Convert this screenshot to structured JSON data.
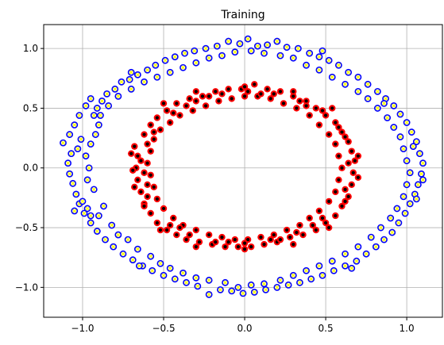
{
  "chart_data": {
    "type": "scatter",
    "title": "Training",
    "xlabel": "",
    "ylabel": "",
    "xlim": [
      -1.24,
      1.22
    ],
    "ylim": [
      -1.25,
      1.2
    ],
    "grid": true,
    "xticks": [
      -1.0,
      -0.5,
      0.0,
      0.5,
      1.0
    ],
    "yticks": [
      -1.0,
      -0.5,
      0.0,
      0.5,
      1.0
    ],
    "xtick_labels": [
      "−1.0",
      "−0.5",
      "0.0",
      "0.5",
      "1.0"
    ],
    "ytick_labels": [
      "−1.0",
      "−0.5",
      "0.0",
      "0.5",
      "1.0"
    ],
    "series": [
      {
        "marker": "circle-with-x",
        "edge_color": "#0000ff",
        "face_color": "#ffff00",
        "points": [
          [
            -1.12,
            0.21
          ],
          [
            -1.08,
            0.28
          ],
          [
            -1.05,
            0.36
          ],
          [
            -1.02,
            0.44
          ],
          [
            -0.98,
            0.52
          ],
          [
            -0.95,
            0.58
          ],
          [
            -0.91,
            0.5
          ],
          [
            -0.88,
            0.56
          ],
          [
            -0.85,
            0.62
          ],
          [
            -0.8,
            0.66
          ],
          [
            -0.76,
            0.72
          ],
          [
            -0.71,
            0.74
          ],
          [
            -0.66,
            0.78
          ],
          [
            -0.6,
            0.82
          ],
          [
            -0.55,
            0.86
          ],
          [
            -0.49,
            0.9
          ],
          [
            -0.43,
            0.93
          ],
          [
            -0.37,
            0.96
          ],
          [
            -0.31,
            0.98
          ],
          [
            -0.24,
            1.0
          ],
          [
            -0.17,
            1.02
          ],
          [
            -0.1,
            1.06
          ],
          [
            -0.03,
            1.04
          ],
          [
            0.02,
            1.08
          ],
          [
            0.08,
            1.02
          ],
          [
            0.14,
            1.03
          ],
          [
            0.2,
            1.06
          ],
          [
            0.26,
            1.01
          ],
          [
            0.33,
            1.0
          ],
          [
            0.4,
            0.96
          ],
          [
            0.46,
            0.93
          ],
          [
            0.52,
            0.9
          ],
          [
            0.58,
            0.86
          ],
          [
            0.64,
            0.8
          ],
          [
            0.7,
            0.76
          ],
          [
            0.76,
            0.7
          ],
          [
            0.82,
            0.64
          ],
          [
            0.87,
            0.58
          ],
          [
            0.92,
            0.52
          ],
          [
            0.96,
            0.45
          ],
          [
            1.0,
            0.38
          ],
          [
            1.03,
            0.3
          ],
          [
            1.06,
            0.22
          ],
          [
            1.08,
            0.12
          ],
          [
            1.1,
            0.04
          ],
          [
            1.09,
            -0.05
          ],
          [
            1.07,
            -0.14
          ],
          [
            1.05,
            -0.22
          ],
          [
            1.02,
            -0.3
          ],
          [
            0.99,
            -0.38
          ],
          [
            0.95,
            -0.46
          ],
          [
            0.91,
            -0.54
          ],
          [
            0.86,
            -0.6
          ],
          [
            0.81,
            -0.66
          ],
          [
            0.75,
            -0.72
          ],
          [
            0.69,
            -0.78
          ],
          [
            0.62,
            -0.82
          ],
          [
            0.55,
            -0.86
          ],
          [
            0.48,
            -0.9
          ],
          [
            0.41,
            -0.93
          ],
          [
            0.34,
            -0.96
          ],
          [
            0.27,
            -0.98
          ],
          [
            0.2,
            -1.0
          ],
          [
            0.13,
            -1.02
          ],
          [
            0.06,
            -1.04
          ],
          [
            -0.01,
            -1.05
          ],
          [
            -0.08,
            -1.03
          ],
          [
            -0.15,
            -1.02
          ],
          [
            -0.22,
            -1.06
          ],
          [
            -0.29,
            -0.99
          ],
          [
            -0.36,
            -0.96
          ],
          [
            -0.43,
            -0.93
          ],
          [
            -0.5,
            -0.9
          ],
          [
            -0.57,
            -0.86
          ],
          [
            -0.63,
            -0.82
          ],
          [
            -0.69,
            -0.77
          ],
          [
            -0.75,
            -0.72
          ],
          [
            -0.81,
            -0.66
          ],
          [
            -0.86,
            -0.6
          ],
          [
            -0.91,
            -0.53
          ],
          [
            -0.95,
            -0.46
          ],
          [
            -0.99,
            -0.38
          ],
          [
            -1.02,
            -0.3
          ],
          [
            -1.04,
            -0.22
          ],
          [
            -1.06,
            -0.13
          ],
          [
            -1.08,
            -0.05
          ],
          [
            -1.09,
            0.04
          ],
          [
            -1.07,
            0.12
          ],
          [
            -0.95,
            0.2
          ],
          [
            -0.98,
            0.1
          ],
          [
            -0.96,
            0.0
          ],
          [
            -0.97,
            -0.1
          ],
          [
            -0.93,
            -0.18
          ],
          [
            -0.92,
            0.28
          ],
          [
            -0.9,
            0.36
          ],
          [
            -0.93,
            0.44
          ],
          [
            -0.87,
            -0.32
          ],
          [
            -0.9,
            -0.4
          ],
          [
            -0.82,
            -0.48
          ],
          [
            -0.78,
            -0.56
          ],
          [
            -0.72,
            -0.6
          ],
          [
            -0.66,
            -0.68
          ],
          [
            -0.58,
            -0.74
          ],
          [
            -0.52,
            -0.8
          ],
          [
            -0.46,
            -0.84
          ],
          [
            -0.38,
            -0.88
          ],
          [
            -0.3,
            -0.92
          ],
          [
            -0.22,
            -0.94
          ],
          [
            -0.12,
            -0.96
          ],
          [
            -0.04,
            -1.0
          ],
          [
            0.04,
            -0.98
          ],
          [
            0.12,
            -0.97
          ],
          [
            0.22,
            -0.94
          ],
          [
            0.3,
            -0.9
          ],
          [
            0.38,
            -0.86
          ],
          [
            0.46,
            -0.82
          ],
          [
            0.54,
            -0.78
          ],
          [
            0.62,
            -0.72
          ],
          [
            0.7,
            -0.66
          ],
          [
            0.78,
            -0.58
          ],
          [
            0.84,
            -0.5
          ],
          [
            0.9,
            -0.42
          ],
          [
            0.94,
            -0.34
          ],
          [
            0.98,
            -0.24
          ],
          [
            1.0,
            -0.14
          ],
          [
            1.02,
            -0.04
          ],
          [
            1.0,
            0.06
          ],
          [
            0.98,
            0.16
          ],
          [
            0.96,
            0.26
          ],
          [
            0.92,
            0.34
          ],
          [
            0.88,
            0.42
          ],
          [
            0.82,
            0.5
          ],
          [
            0.76,
            0.58
          ],
          [
            0.7,
            0.64
          ],
          [
            0.62,
            0.7
          ],
          [
            0.54,
            0.76
          ],
          [
            0.46,
            0.82
          ],
          [
            0.38,
            0.86
          ],
          [
            0.3,
            0.92
          ],
          [
            0.22,
            0.94
          ],
          [
            0.12,
            0.96
          ],
          [
            0.04,
            0.98
          ],
          [
            -0.06,
            0.97
          ],
          [
            -0.14,
            0.94
          ],
          [
            -0.22,
            0.92
          ],
          [
            -0.3,
            0.88
          ],
          [
            -0.38,
            0.84
          ],
          [
            -0.46,
            0.8
          ],
          [
            -0.54,
            0.76
          ],
          [
            -0.62,
            0.72
          ],
          [
            -0.7,
            0.66
          ],
          [
            -0.78,
            0.6
          ],
          [
            -0.84,
            0.52
          ],
          [
            -0.89,
            0.44
          ],
          [
            -1.05,
            -0.36
          ],
          [
            -1.0,
            -0.28
          ],
          [
            -0.97,
            -0.34
          ],
          [
            -0.95,
            -0.4
          ],
          [
            -1.01,
            0.24
          ],
          [
            -1.03,
            0.16
          ],
          [
            1.1,
            -0.1
          ],
          [
            1.04,
            0.18
          ],
          [
            1.06,
            -0.26
          ],
          [
            0.86,
            0.54
          ],
          [
            0.66,
            -0.84
          ],
          [
            -0.65,
            -0.82
          ],
          [
            -0.7,
            0.8
          ],
          [
            0.48,
            0.98
          ]
        ]
      },
      {
        "marker": "circle-with-dot",
        "edge_color": "#ff0000",
        "face_color": "#000000",
        "points": [
          [
            -0.68,
            0.18
          ],
          [
            -0.66,
            0.1
          ],
          [
            -0.67,
            0.0
          ],
          [
            -0.66,
            -0.1
          ],
          [
            -0.64,
            -0.2
          ],
          [
            -0.62,
            -0.3
          ],
          [
            -0.58,
            -0.38
          ],
          [
            -0.54,
            -0.46
          ],
          [
            -0.48,
            -0.52
          ],
          [
            -0.42,
            -0.56
          ],
          [
            -0.36,
            -0.6
          ],
          [
            -0.28,
            -0.62
          ],
          [
            -0.2,
            -0.64
          ],
          [
            -0.12,
            -0.66
          ],
          [
            -0.04,
            -0.66
          ],
          [
            0.04,
            -0.66
          ],
          [
            0.12,
            -0.64
          ],
          [
            0.2,
            -0.62
          ],
          [
            0.28,
            -0.58
          ],
          [
            0.36,
            -0.56
          ],
          [
            0.44,
            -0.52
          ],
          [
            0.5,
            -0.46
          ],
          [
            0.56,
            -0.4
          ],
          [
            0.6,
            -0.32
          ],
          [
            0.64,
            -0.24
          ],
          [
            0.66,
            -0.14
          ],
          [
            0.67,
            -0.04
          ],
          [
            0.68,
            0.06
          ],
          [
            0.66,
            0.14
          ],
          [
            0.64,
            0.22
          ],
          [
            0.6,
            0.3
          ],
          [
            0.56,
            0.38
          ],
          [
            0.5,
            0.44
          ],
          [
            0.44,
            0.5
          ],
          [
            0.38,
            0.56
          ],
          [
            0.3,
            0.6
          ],
          [
            0.22,
            0.64
          ],
          [
            0.14,
            0.66
          ],
          [
            0.06,
            0.7
          ],
          [
            -0.02,
            0.66
          ],
          [
            -0.1,
            0.66
          ],
          [
            -0.18,
            0.64
          ],
          [
            -0.26,
            0.6
          ],
          [
            -0.34,
            0.58
          ],
          [
            -0.42,
            0.54
          ],
          [
            -0.48,
            0.48
          ],
          [
            -0.54,
            0.42
          ],
          [
            -0.58,
            0.36
          ],
          [
            -0.62,
            0.28
          ],
          [
            -0.56,
            0.24
          ],
          [
            -0.58,
            0.14
          ],
          [
            -0.6,
            0.04
          ],
          [
            -0.58,
            -0.06
          ],
          [
            -0.56,
            -0.16
          ],
          [
            -0.54,
            -0.26
          ],
          [
            -0.5,
            -0.34
          ],
          [
            -0.44,
            -0.42
          ],
          [
            -0.38,
            -0.48
          ],
          [
            -0.3,
            -0.52
          ],
          [
            -0.22,
            -0.56
          ],
          [
            -0.14,
            -0.58
          ],
          [
            -0.06,
            -0.6
          ],
          [
            0.02,
            -0.6
          ],
          [
            0.1,
            -0.58
          ],
          [
            0.18,
            -0.56
          ],
          [
            0.26,
            -0.52
          ],
          [
            0.34,
            -0.48
          ],
          [
            0.4,
            -0.42
          ],
          [
            0.46,
            -0.36
          ],
          [
            0.52,
            -0.28
          ],
          [
            0.56,
            -0.2
          ],
          [
            0.58,
            -0.1
          ],
          [
            0.6,
            0.0
          ],
          [
            0.58,
            0.1
          ],
          [
            0.56,
            0.2
          ],
          [
            0.52,
            0.28
          ],
          [
            0.46,
            0.36
          ],
          [
            0.4,
            0.44
          ],
          [
            0.32,
            0.5
          ],
          [
            0.24,
            0.54
          ],
          [
            0.16,
            0.58
          ],
          [
            0.08,
            0.6
          ],
          [
            0.0,
            0.6
          ],
          [
            -0.08,
            0.58
          ],
          [
            -0.16,
            0.56
          ],
          [
            -0.24,
            0.52
          ],
          [
            -0.32,
            0.48
          ],
          [
            -0.4,
            0.44
          ],
          [
            -0.46,
            0.38
          ],
          [
            -0.52,
            0.32
          ],
          [
            -0.64,
            0.06
          ],
          [
            -0.62,
            -0.04
          ],
          [
            -0.6,
            -0.14
          ],
          [
            -0.6,
            -0.24
          ],
          [
            -0.46,
            -0.48
          ],
          [
            -0.34,
            -0.56
          ],
          [
            -0.18,
            -0.62
          ],
          [
            0.0,
            -0.63
          ],
          [
            0.16,
            -0.6
          ],
          [
            0.32,
            -0.54
          ],
          [
            0.48,
            -0.42
          ],
          [
            0.62,
            -0.18
          ],
          [
            0.64,
            0.04
          ],
          [
            0.62,
            0.26
          ],
          [
            0.48,
            0.48
          ],
          [
            0.34,
            0.56
          ],
          [
            0.18,
            0.62
          ],
          [
            0.02,
            0.64
          ],
          [
            -0.14,
            0.62
          ],
          [
            -0.3,
            0.56
          ],
          [
            -0.44,
            0.46
          ],
          [
            -0.56,
            0.3
          ],
          [
            -0.7,
            0.12
          ],
          [
            -0.69,
            -0.02
          ],
          [
            -0.68,
            -0.16
          ],
          [
            0.7,
            -0.08
          ],
          [
            0.7,
            0.1
          ],
          [
            0.54,
            0.5
          ],
          [
            -0.5,
            0.54
          ],
          [
            -0.52,
            -0.52
          ],
          [
            0.52,
            -0.5
          ],
          [
            0.3,
            -0.64
          ],
          [
            -0.3,
            0.64
          ],
          [
            0.3,
            0.64
          ],
          [
            -0.3,
            -0.66
          ],
          [
            0.0,
            0.68
          ],
          [
            0.0,
            -0.68
          ],
          [
            -0.36,
            0.52
          ],
          [
            0.38,
            0.52
          ],
          [
            -0.4,
            -0.5
          ],
          [
            0.42,
            -0.48
          ],
          [
            0.58,
            0.34
          ],
          [
            -0.6,
            0.2
          ],
          [
            0.62,
            -0.28
          ],
          [
            -0.62,
            -0.32
          ],
          [
            0.1,
            0.62
          ],
          [
            -0.1,
            -0.62
          ],
          [
            0.22,
            -0.6
          ],
          [
            -0.22,
            0.6
          ]
        ]
      }
    ]
  }
}
